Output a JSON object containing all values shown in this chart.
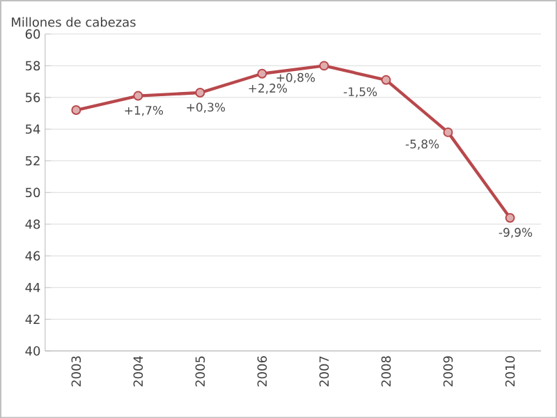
{
  "chart_data": {
    "type": "line",
    "ylabel": "Millones de cabezas",
    "categories": [
      "2003",
      "2004",
      "2005",
      "2006",
      "2007",
      "2008",
      "2009",
      "2010"
    ],
    "series": [
      {
        "color": "#b8484c",
        "values": [
          55.2,
          56.1,
          56.3,
          57.5,
          58.0,
          57.1,
          53.8,
          48.4
        ]
      }
    ],
    "ylim": [
      40,
      60
    ],
    "yticks": [
      40,
      42,
      44,
      46,
      48,
      50,
      52,
      54,
      56,
      58,
      60
    ],
    "grid": "y",
    "marker": "circle",
    "line_style": "solid",
    "annotations": [
      {
        "text": "+1,7%",
        "x": "2004",
        "y": 56.1
      },
      {
        "text": "+0,3%",
        "x": "2005",
        "y": 56.3
      },
      {
        "text": "+2,2%",
        "x": "2006",
        "y": 57.5
      },
      {
        "text": "+0,8%",
        "x": "2007",
        "y": 58.0
      },
      {
        "text": "-1,5%",
        "x": "2008",
        "y": 57.1
      },
      {
        "text": "-5,8%",
        "x": "2009",
        "y": 53.8
      },
      {
        "text": "-9,9%",
        "x": "2010",
        "y": 48.4
      }
    ]
  }
}
